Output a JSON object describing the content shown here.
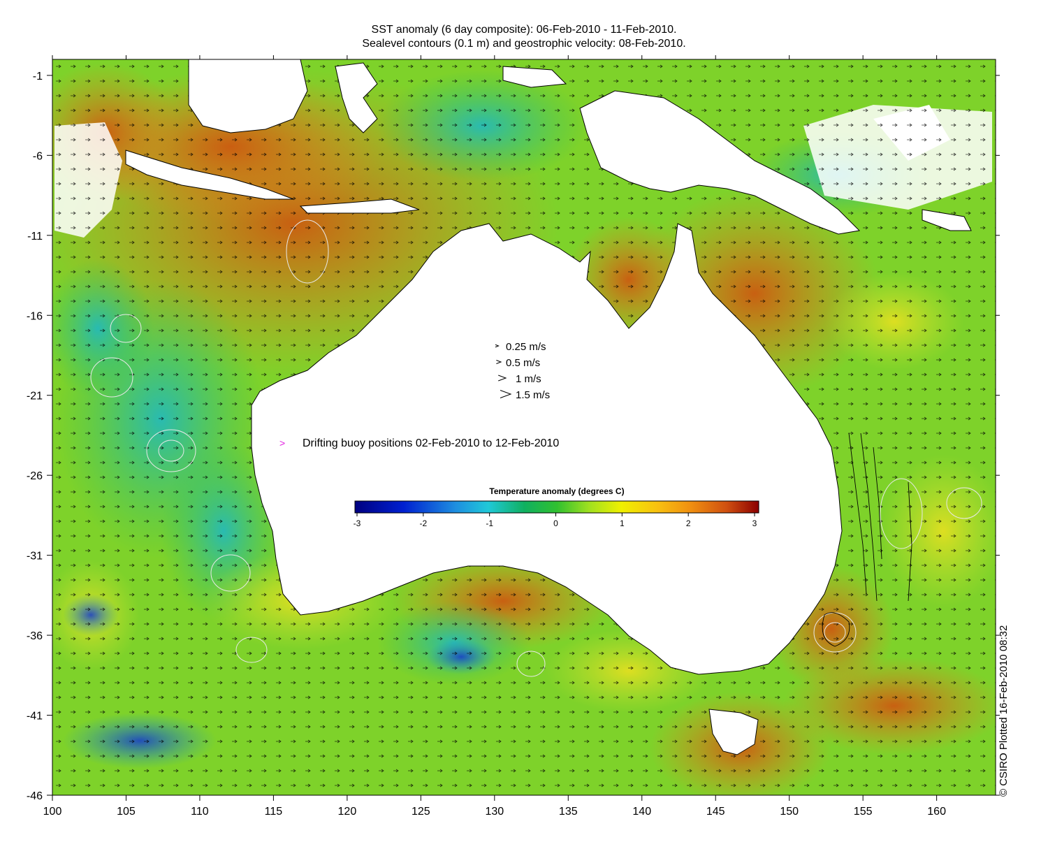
{
  "title_line1": "SST anomaly (6 day composite): 06-Feb-2010 - 11-Feb-2010.",
  "title_line2": "Sealevel contours (0.1 m) and geostrophic velocity: 08-Feb-2010.",
  "axes": {
    "lon_ticks": [
      "100",
      "105",
      "110",
      "115",
      "120",
      "125",
      "130",
      "135",
      "140",
      "145",
      "150",
      "155",
      "160"
    ],
    "lat_ticks": [
      "-1",
      "-6",
      "-11",
      "-16",
      "-21",
      "-26",
      "-31",
      "-36",
      "-41",
      "-46"
    ],
    "lon_range": [
      100,
      164
    ],
    "lat_range": [
      -46,
      0
    ]
  },
  "velocity_legend": [
    {
      "label": "0.25 m/s",
      "speed": 0.25
    },
    {
      "label": "0.5 m/s",
      "speed": 0.5
    },
    {
      "label": "1 m/s",
      "speed": 1
    },
    {
      "label": "1.5 m/s",
      "speed": 1.5
    }
  ],
  "buoy_legend": "Drifting buoy positions 02-Feb-2010 to 12-Feb-2010",
  "colorbar": {
    "title": "Temperature anomaly (degrees C)",
    "ticks": [
      "-3",
      "-2",
      "-1",
      "0",
      "1",
      "2",
      "3"
    ],
    "range": [
      -3,
      3
    ]
  },
  "credit": "© CSIRO Plotted 16-Feb-2010 08:32",
  "colors": {
    "buoy": "#e020e0",
    "land": "#ffffff",
    "contour": "#e8e8e8"
  }
}
